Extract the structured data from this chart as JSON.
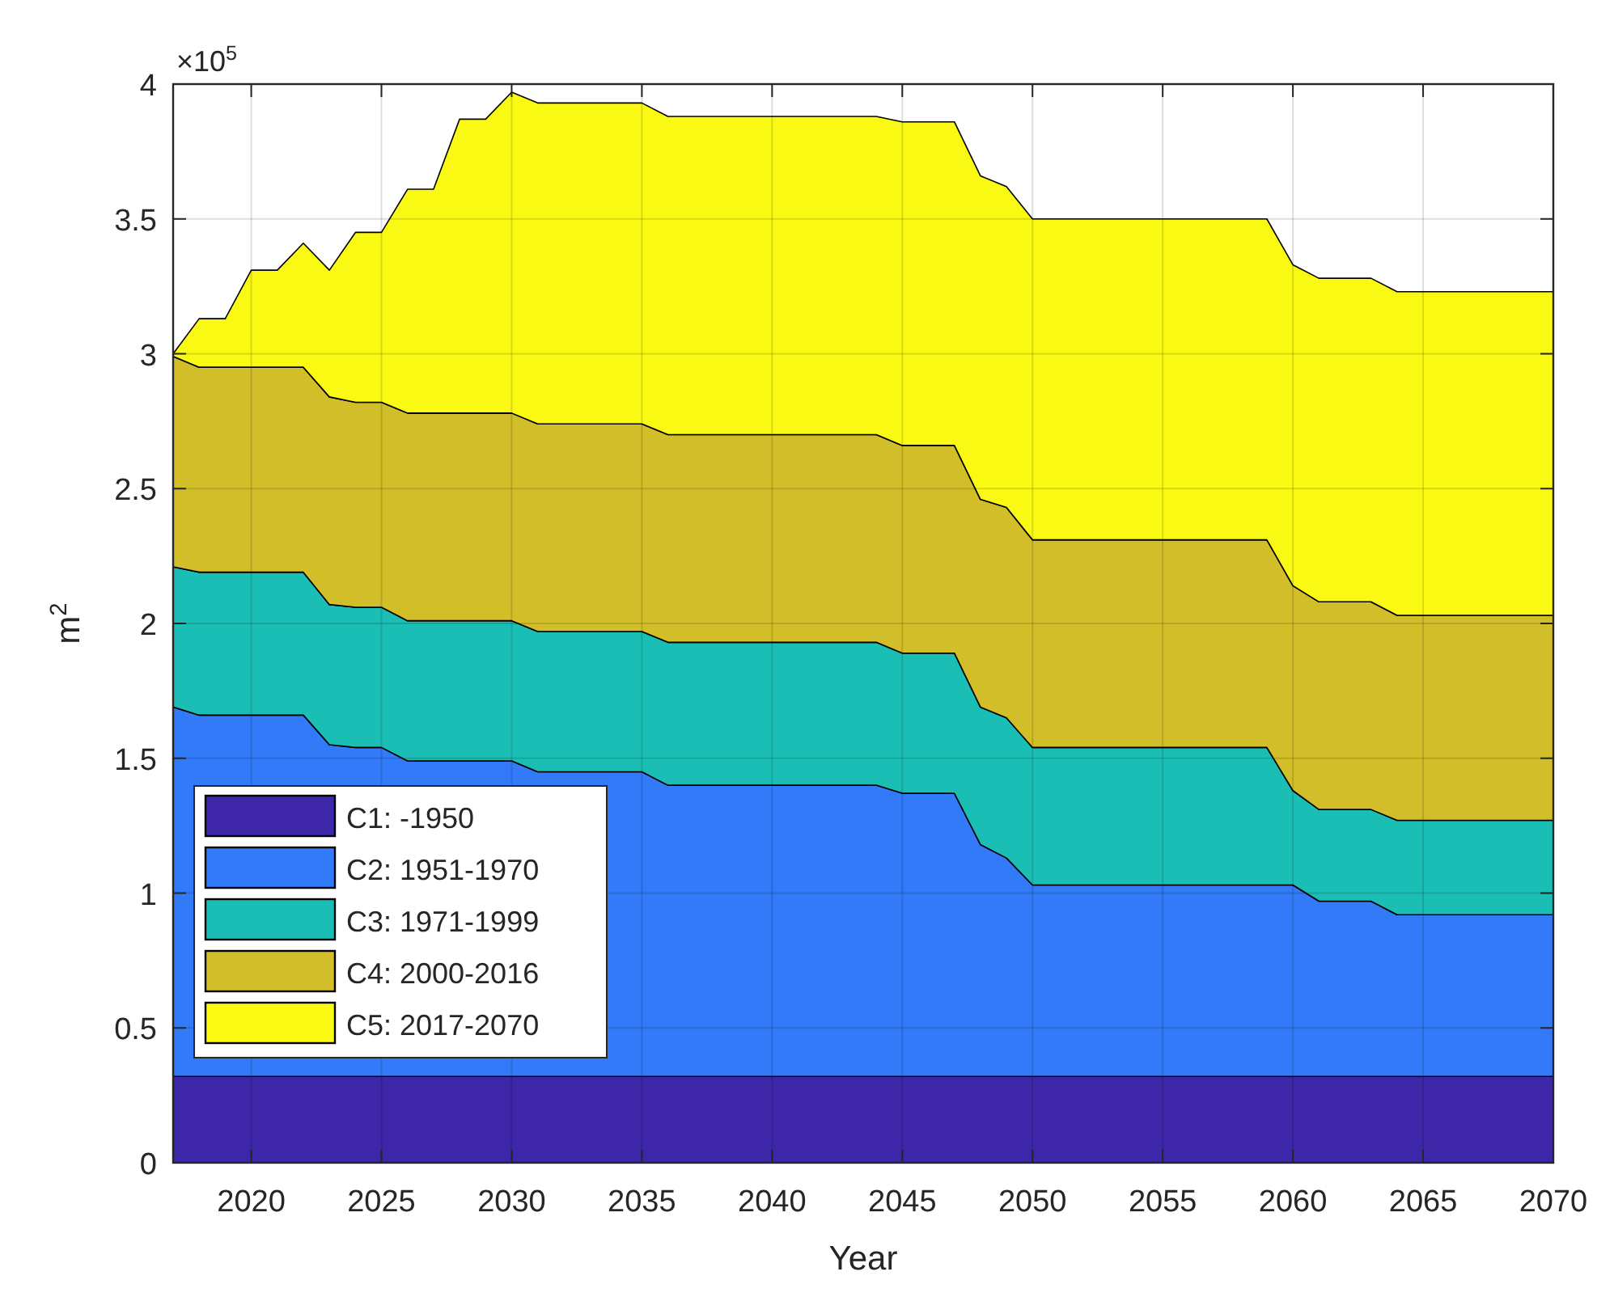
{
  "chart_data": {
    "type": "area",
    "stacked": true,
    "xlabel": "Year",
    "ylabel": "m$^{2}$",
    "annotations": [
      "×10$^{5}$"
    ],
    "x": [
      2017,
      2018,
      2019,
      2020,
      2021,
      2022,
      2023,
      2024,
      2025,
      2026,
      2027,
      2028,
      2029,
      2030,
      2031,
      2032,
      2033,
      2034,
      2035,
      2036,
      2037,
      2038,
      2039,
      2040,
      2041,
      2042,
      2043,
      2044,
      2045,
      2046,
      2047,
      2048,
      2049,
      2050,
      2051,
      2052,
      2053,
      2054,
      2055,
      2056,
      2057,
      2058,
      2059,
      2060,
      2061,
      2062,
      2063,
      2064,
      2065,
      2066,
      2067,
      2068,
      2069,
      2070
    ],
    "xlim": [
      2017,
      2070
    ],
    "xticks": [
      2020,
      2025,
      2030,
      2035,
      2040,
      2045,
      2050,
      2055,
      2060,
      2065,
      2070
    ],
    "ylim": [
      0,
      4
    ],
    "yticks": [
      0,
      0.5,
      1,
      1.5,
      2,
      2.5,
      3,
      3.5,
      4
    ],
    "grid": true,
    "legend": "bottom left",
    "series": [
      {
        "name": "C1: -1950",
        "color": "#3e26a8",
        "values": [
          0.32,
          0.32,
          0.32,
          0.32,
          0.32,
          0.32,
          0.32,
          0.32,
          0.32,
          0.32,
          0.32,
          0.32,
          0.32,
          0.32,
          0.32,
          0.32,
          0.32,
          0.32,
          0.32,
          0.32,
          0.32,
          0.32,
          0.32,
          0.32,
          0.32,
          0.32,
          0.32,
          0.32,
          0.32,
          0.32,
          0.32,
          0.32,
          0.32,
          0.32,
          0.32,
          0.32,
          0.32,
          0.32,
          0.32,
          0.32,
          0.32,
          0.32,
          0.32,
          0.32,
          0.32,
          0.32,
          0.32,
          0.32,
          0.32,
          0.32,
          0.32,
          0.32,
          0.32,
          0.32
        ]
      },
      {
        "name": "C2: 1951-1970",
        "color": "#327af8",
        "values": [
          1.37,
          1.34,
          1.34,
          1.34,
          1.34,
          1.34,
          1.23,
          1.22,
          1.22,
          1.17,
          1.17,
          1.17,
          1.17,
          1.17,
          1.13,
          1.13,
          1.13,
          1.13,
          1.13,
          1.08,
          1.08,
          1.08,
          1.08,
          1.08,
          1.08,
          1.08,
          1.08,
          1.08,
          1.05,
          1.05,
          1.05,
          0.86,
          0.81,
          0.71,
          0.71,
          0.71,
          0.71,
          0.71,
          0.71,
          0.71,
          0.71,
          0.71,
          0.71,
          0.71,
          0.65,
          0.65,
          0.65,
          0.6,
          0.6,
          0.6,
          0.6,
          0.6,
          0.6,
          0.6
        ]
      },
      {
        "name": "C3: 1971-1999",
        "color": "#1bbeb4",
        "values": [
          0.52,
          0.53,
          0.53,
          0.53,
          0.53,
          0.53,
          0.52,
          0.52,
          0.52,
          0.52,
          0.52,
          0.52,
          0.52,
          0.52,
          0.52,
          0.52,
          0.52,
          0.52,
          0.52,
          0.53,
          0.53,
          0.53,
          0.53,
          0.53,
          0.53,
          0.53,
          0.53,
          0.53,
          0.52,
          0.52,
          0.52,
          0.51,
          0.52,
          0.51,
          0.51,
          0.51,
          0.51,
          0.51,
          0.51,
          0.51,
          0.51,
          0.51,
          0.51,
          0.35,
          0.34,
          0.34,
          0.34,
          0.35,
          0.35,
          0.35,
          0.35,
          0.35,
          0.35,
          0.35
        ]
      },
      {
        "name": "C4: 2000-2016",
        "color": "#d2be28",
        "values": [
          0.78,
          0.76,
          0.76,
          0.76,
          0.76,
          0.76,
          0.77,
          0.76,
          0.76,
          0.77,
          0.77,
          0.77,
          0.77,
          0.77,
          0.77,
          0.77,
          0.77,
          0.77,
          0.77,
          0.77,
          0.77,
          0.77,
          0.77,
          0.77,
          0.77,
          0.77,
          0.77,
          0.77,
          0.77,
          0.77,
          0.77,
          0.77,
          0.78,
          0.77,
          0.77,
          0.77,
          0.77,
          0.77,
          0.77,
          0.77,
          0.77,
          0.77,
          0.77,
          0.76,
          0.77,
          0.77,
          0.77,
          0.76,
          0.76,
          0.76,
          0.76,
          0.76,
          0.76,
          0.76
        ]
      },
      {
        "name": "C5: 2017-2070",
        "color": "#f9f914",
        "values": [
          0.01,
          0.18,
          0.18,
          0.36,
          0.36,
          0.46,
          0.47,
          0.63,
          0.63,
          0.83,
          0.83,
          1.09,
          1.09,
          1.19,
          1.19,
          1.19,
          1.19,
          1.19,
          1.19,
          1.18,
          1.18,
          1.18,
          1.18,
          1.18,
          1.18,
          1.18,
          1.18,
          1.18,
          1.2,
          1.2,
          1.2,
          1.2,
          1.19,
          1.19,
          1.19,
          1.19,
          1.19,
          1.19,
          1.19,
          1.19,
          1.19,
          1.19,
          1.19,
          1.19,
          1.2,
          1.2,
          1.2,
          1.2,
          1.2,
          1.2,
          1.2,
          1.2,
          1.2,
          1.2
        ]
      }
    ]
  }
}
